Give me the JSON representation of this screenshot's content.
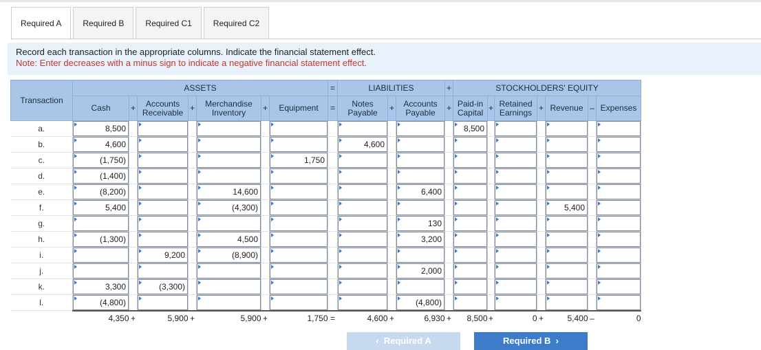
{
  "tabs": [
    {
      "label": "Required A",
      "active": true
    },
    {
      "label": "Required B",
      "active": false
    },
    {
      "label": "Required C1",
      "active": false
    },
    {
      "label": "Required C2",
      "active": false
    }
  ],
  "instructions": {
    "main": "Record each transaction in the appropriate columns. Indicate the financial statement effect.",
    "note": "Note: Enter decreases with a minus sign to indicate a negative financial statement effect."
  },
  "groups": {
    "assets": "ASSETS",
    "eq_sign": "=",
    "liabilities": "LIABILITIES",
    "plus_sign": "+",
    "equity": "STOCKHOLDERS' EQUITY"
  },
  "columns": {
    "transaction": "Transaction",
    "cash": "Cash",
    "ar": "Accounts Receivable",
    "inventory": "Merchandise Inventory",
    "equipment": "Equipment",
    "notes": "Notes Payable",
    "ap": "Accounts Payable",
    "pic": "Paid-in Capital",
    "re": "Retained Earnings",
    "revenue": "Revenue",
    "expenses": "Expenses"
  },
  "signs": [
    "+",
    "+",
    "+",
    "=",
    "+",
    "+",
    "+",
    "+",
    "–"
  ],
  "rows": [
    {
      "label": "a.",
      "values": [
        "8,500",
        "",
        "",
        "",
        "",
        "",
        "8,500",
        "",
        "",
        ""
      ]
    },
    {
      "label": "b.",
      "values": [
        "4,600",
        "",
        "",
        "",
        "4,600",
        "",
        "",
        "",
        "",
        ""
      ]
    },
    {
      "label": "c.",
      "values": [
        "(1,750)",
        "",
        "",
        "1,750",
        "",
        "",
        "",
        "",
        "",
        ""
      ]
    },
    {
      "label": "d.",
      "values": [
        "(1,400)",
        "",
        "",
        "",
        "",
        "",
        "",
        "",
        "",
        ""
      ]
    },
    {
      "label": "e.",
      "values": [
        "(8,200)",
        "",
        "14,600",
        "",
        "",
        "6,400",
        "",
        "",
        "",
        ""
      ]
    },
    {
      "label": "f.",
      "values": [
        "5,400",
        "",
        "(4,300)",
        "",
        "",
        "",
        "",
        "",
        "5,400",
        ""
      ]
    },
    {
      "label": "g.",
      "values": [
        "",
        "",
        "",
        "",
        "",
        "130",
        "",
        "",
        "",
        ""
      ]
    },
    {
      "label": "h.",
      "values": [
        "(1,300)",
        "",
        "4,500",
        "",
        "",
        "3,200",
        "",
        "",
        "",
        ""
      ]
    },
    {
      "label": "i.",
      "values": [
        "",
        "9,200",
        "(8,900)",
        "",
        "",
        "",
        "",
        "",
        "",
        ""
      ]
    },
    {
      "label": "j.",
      "values": [
        "",
        "",
        "",
        "",
        "",
        "2,000",
        "",
        "",
        "",
        ""
      ]
    },
    {
      "label": "k.",
      "values": [
        "3,300",
        "(3,300)",
        "",
        "",
        "",
        "",
        "",
        "",
        "",
        ""
      ]
    },
    {
      "label": "l.",
      "values": [
        "(4,800)",
        "",
        "",
        "",
        "",
        "(4,800)",
        "",
        "",
        "",
        ""
      ]
    }
  ],
  "totals": {
    "values": [
      "4,350",
      "5,900",
      "5,900",
      "1,750",
      "4,600",
      "6,930",
      "8,500",
      "0",
      "5,400",
      "0"
    ],
    "signs": [
      "+",
      "+",
      "+",
      "=",
      "+",
      "+",
      "+",
      "+",
      "–"
    ]
  },
  "nav": {
    "prev": "Required A",
    "next": "Required B"
  }
}
